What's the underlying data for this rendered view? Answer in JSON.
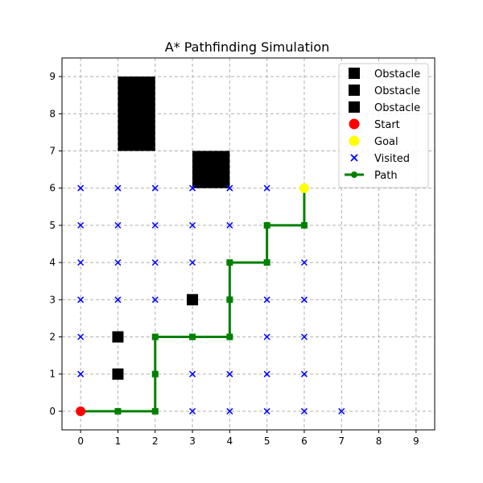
{
  "chart_data": {
    "type": "scatter",
    "title": "A* Pathfinding Simulation",
    "xlabel": "",
    "ylabel": "",
    "xlim": [
      -0.5,
      9.5
    ],
    "ylim": [
      -0.5,
      9.5
    ],
    "xticks": [
      0,
      1,
      2,
      3,
      4,
      5,
      6,
      7,
      8,
      9
    ],
    "yticks": [
      0,
      1,
      2,
      3,
      4,
      5,
      6,
      7,
      8,
      9
    ],
    "grid": true,
    "legend_position": "top-right",
    "series": [
      {
        "name": "Obstacle",
        "kind": "square",
        "color": "#000000",
        "rects": [
          {
            "x": [
              1,
              2
            ],
            "y": [
              7,
              9
            ]
          }
        ]
      },
      {
        "name": "Obstacle",
        "kind": "square",
        "color": "#000000",
        "rects": [
          {
            "x": [
              3,
              4
            ],
            "y": [
              6,
              7
            ]
          }
        ]
      },
      {
        "name": "Obstacle",
        "kind": "square",
        "color": "#000000",
        "points": [
          [
            1,
            1
          ],
          [
            1,
            2
          ],
          [
            3,
            3
          ]
        ]
      },
      {
        "name": "Start",
        "kind": "circle",
        "color": "#ff0000",
        "points": [
          [
            0,
            0
          ]
        ]
      },
      {
        "name": "Goal",
        "kind": "circle",
        "color": "#ffff00",
        "points": [
          [
            6,
            6
          ]
        ]
      },
      {
        "name": "Visited",
        "kind": "x",
        "color": "#0000ff",
        "points": [
          [
            0,
            1
          ],
          [
            0,
            2
          ],
          [
            0,
            3
          ],
          [
            0,
            4
          ],
          [
            0,
            5
          ],
          [
            0,
            6
          ],
          [
            1,
            3
          ],
          [
            1,
            4
          ],
          [
            1,
            5
          ],
          [
            1,
            6
          ],
          [
            2,
            3
          ],
          [
            2,
            4
          ],
          [
            2,
            5
          ],
          [
            2,
            6
          ],
          [
            3,
            0
          ],
          [
            3,
            1
          ],
          [
            3,
            4
          ],
          [
            3,
            5
          ],
          [
            3,
            6
          ],
          [
            4,
            0
          ],
          [
            4,
            1
          ],
          [
            4,
            5
          ],
          [
            4,
            6
          ],
          [
            5,
            0
          ],
          [
            5,
            1
          ],
          [
            5,
            2
          ],
          [
            5,
            3
          ],
          [
            5,
            6
          ],
          [
            6,
            0
          ],
          [
            6,
            1
          ],
          [
            6,
            2
          ],
          [
            6,
            3
          ],
          [
            6,
            4
          ],
          [
            7,
            0
          ]
        ]
      },
      {
        "name": "Path",
        "kind": "line",
        "color": "#008000",
        "points": [
          [
            0,
            0
          ],
          [
            1,
            0
          ],
          [
            2,
            0
          ],
          [
            2,
            1
          ],
          [
            2,
            2
          ],
          [
            3,
            2
          ],
          [
            4,
            2
          ],
          [
            4,
            3
          ],
          [
            4,
            4
          ],
          [
            5,
            4
          ],
          [
            5,
            5
          ],
          [
            6,
            5
          ],
          [
            6,
            6
          ]
        ]
      }
    ]
  }
}
